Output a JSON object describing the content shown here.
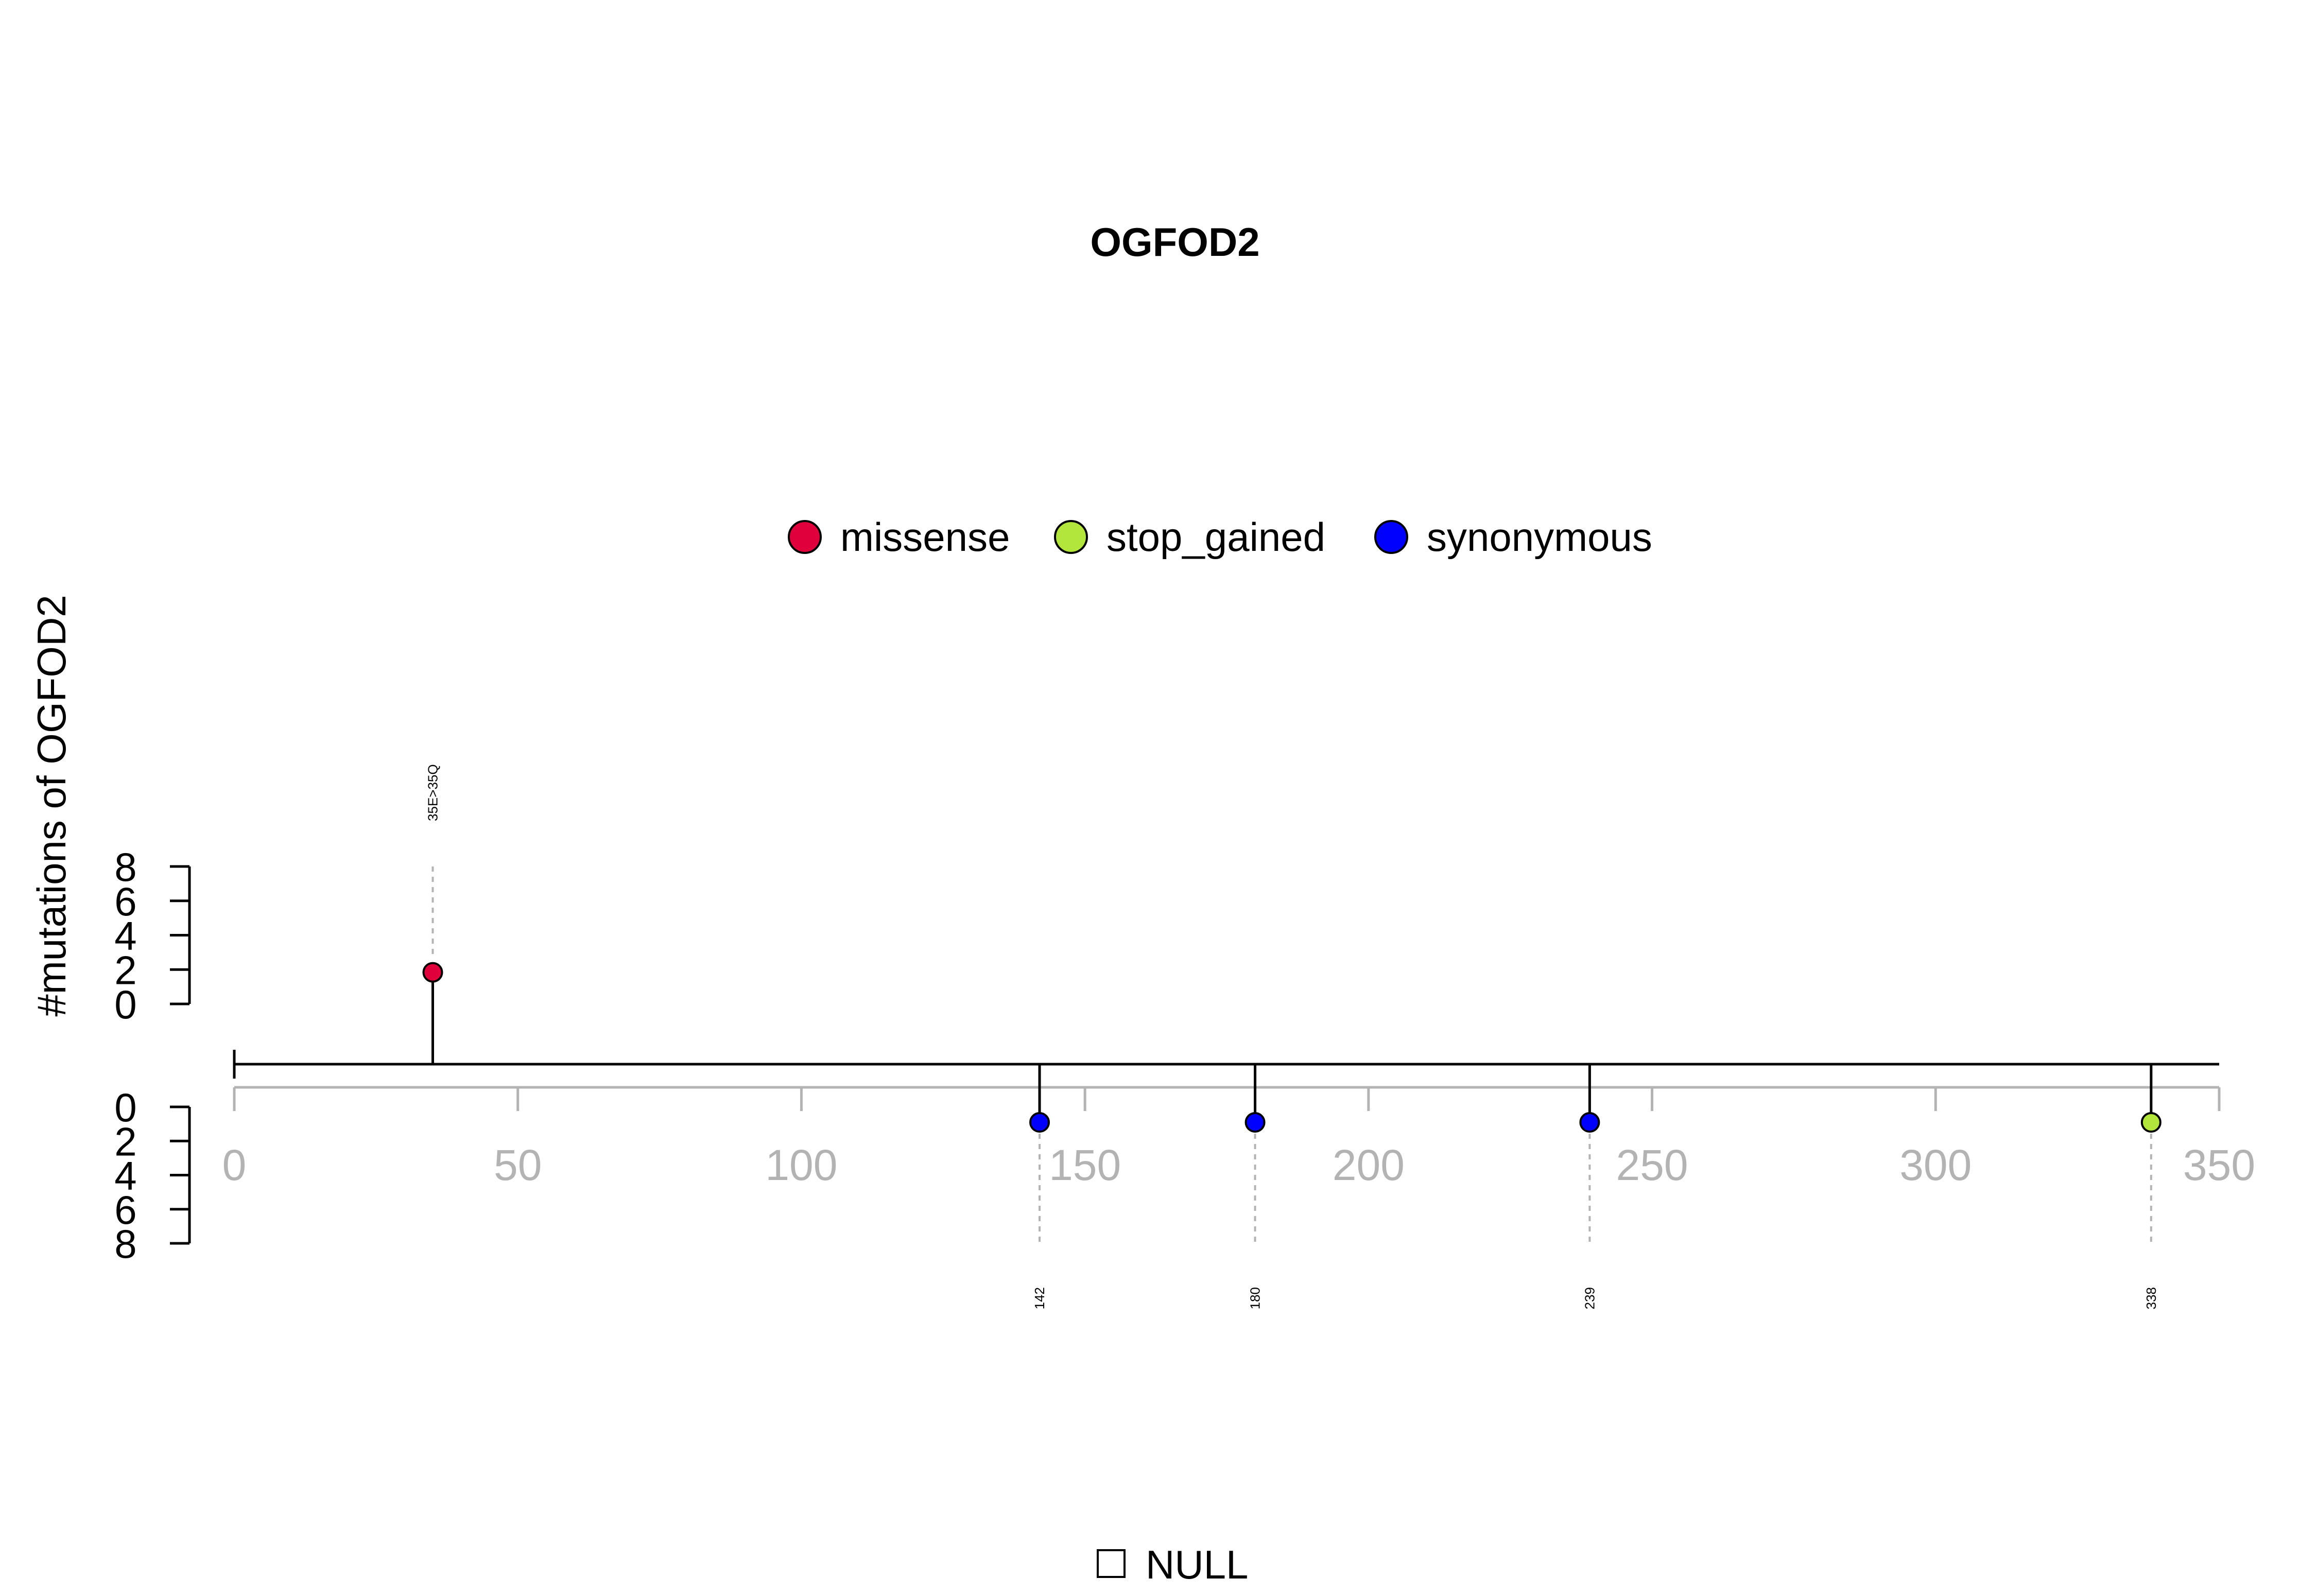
{
  "chart_data": {
    "type": "lollipop",
    "title": "OGFOD2",
    "ylabel": "#mutations of OGFOD2",
    "xlim": [
      0,
      350
    ],
    "x_ticks": [
      "0",
      "50",
      "100",
      "150",
      "200",
      "250",
      "300",
      "350"
    ],
    "x_tick_values": [
      0,
      50,
      100,
      150,
      200,
      250,
      300,
      350
    ],
    "ylim": [
      0,
      8
    ],
    "y_ticks_upper": [
      "8",
      "6",
      "4",
      "2",
      "0"
    ],
    "y_ticks_lower": [
      "0",
      "2",
      "4",
      "6",
      "8"
    ],
    "y_tick_values": [
      8,
      6,
      4,
      2,
      0
    ],
    "legend": {
      "placement": "top",
      "items": [
        {
          "label": "missense",
          "color": "#e0003c"
        },
        {
          "label": "stop_gained",
          "color": "#b3e63c"
        },
        {
          "label": "synonymous",
          "color": "#0000ff"
        }
      ]
    },
    "mutations": [
      {
        "position": 35,
        "label": "35E>35Q",
        "type": "missense",
        "side": "up",
        "count": 1
      },
      {
        "position": 142,
        "label": "142",
        "type": "synonymous",
        "side": "down",
        "count": 1
      },
      {
        "position": 180,
        "label": "180",
        "type": "synonymous",
        "side": "down",
        "count": 1
      },
      {
        "position": 239,
        "label": "239",
        "type": "synonymous",
        "side": "down",
        "count": 1
      },
      {
        "position": 338,
        "label": "338",
        "type": "stop_gained",
        "side": "down",
        "count": 1
      }
    ],
    "domain_legend": {
      "label": "NULL"
    }
  }
}
